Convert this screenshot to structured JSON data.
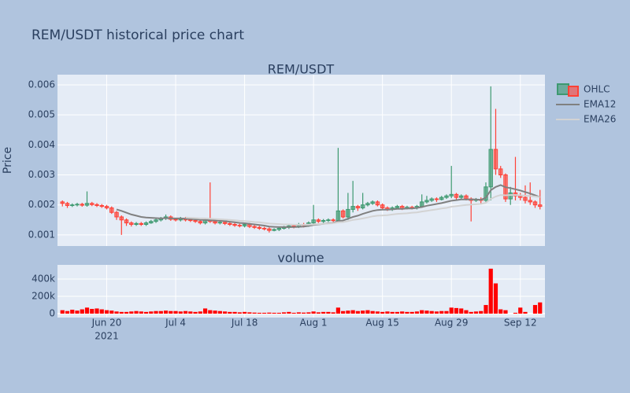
{
  "chart_data": {
    "type": "candlestick",
    "title": "REM/USDT historical price chart",
    "subtitle": "REM/USDT",
    "ylabel": "Price",
    "ohlc_name": "OHLC",
    "increasing_color": "#3D9970",
    "decreasing_color": "#FF4136",
    "x": [
      "2021-06-11",
      "2021-06-12",
      "2021-06-13",
      "2021-06-14",
      "2021-06-15",
      "2021-06-16",
      "2021-06-17",
      "2021-06-18",
      "2021-06-19",
      "2021-06-20",
      "2021-06-21",
      "2021-06-22",
      "2021-06-23",
      "2021-06-24",
      "2021-06-25",
      "2021-06-26",
      "2021-06-27",
      "2021-06-28",
      "2021-06-29",
      "2021-06-30",
      "2021-07-01",
      "2021-07-02",
      "2021-07-03",
      "2021-07-04",
      "2021-07-05",
      "2021-07-06",
      "2021-07-07",
      "2021-07-08",
      "2021-07-09",
      "2021-07-10",
      "2021-07-11",
      "2021-07-12",
      "2021-07-13",
      "2021-07-14",
      "2021-07-15",
      "2021-07-16",
      "2021-07-17",
      "2021-07-18",
      "2021-07-19",
      "2021-07-20",
      "2021-07-21",
      "2021-07-22",
      "2021-07-23",
      "2021-07-24",
      "2021-07-25",
      "2021-07-26",
      "2021-07-27",
      "2021-07-28",
      "2021-07-29",
      "2021-07-30",
      "2021-07-31",
      "2021-08-01",
      "2021-08-02",
      "2021-08-03",
      "2021-08-04",
      "2021-08-05",
      "2021-08-06",
      "2021-08-07",
      "2021-08-08",
      "2021-08-09",
      "2021-08-10",
      "2021-08-11",
      "2021-08-12",
      "2021-08-13",
      "2021-08-14",
      "2021-08-15",
      "2021-08-16",
      "2021-08-17",
      "2021-08-18",
      "2021-08-19",
      "2021-08-20",
      "2021-08-21",
      "2021-08-22",
      "2021-08-23",
      "2021-08-24",
      "2021-08-25",
      "2021-08-26",
      "2021-08-27",
      "2021-08-28",
      "2021-08-29",
      "2021-08-30",
      "2021-08-31",
      "2021-09-01",
      "2021-09-02",
      "2021-09-03",
      "2021-09-04",
      "2021-09-05",
      "2021-09-06",
      "2021-09-07",
      "2021-09-08",
      "2021-09-09",
      "2021-09-10",
      "2021-09-11",
      "2021-09-12",
      "2021-09-13",
      "2021-09-14",
      "2021-09-15",
      "2021-09-16"
    ],
    "open": [
      0.0021,
      0.00205,
      0.00198,
      0.002,
      0.00202,
      0.00199,
      0.00205,
      0.00201,
      0.00198,
      0.00195,
      0.0019,
      0.00175,
      0.0016,
      0.0015,
      0.0014,
      0.00135,
      0.00138,
      0.00135,
      0.0014,
      0.00145,
      0.0015,
      0.00155,
      0.0016,
      0.00152,
      0.0015,
      0.00155,
      0.0015,
      0.00148,
      0.00145,
      0.0014,
      0.0015,
      0.00145,
      0.0014,
      0.00142,
      0.00138,
      0.00135,
      0.00132,
      0.0013,
      0.00135,
      0.00128,
      0.00125,
      0.00122,
      0.0012,
      0.00115,
      0.00118,
      0.00122,
      0.00125,
      0.0013,
      0.00128,
      0.00135,
      0.00132,
      0.0014,
      0.0015,
      0.00145,
      0.00148,
      0.0015,
      0.00148,
      0.0018,
      0.0016,
      0.00185,
      0.00195,
      0.0019,
      0.002,
      0.00205,
      0.0021,
      0.002,
      0.0019,
      0.00185,
      0.0019,
      0.00195,
      0.00188,
      0.00192,
      0.0019,
      0.00195,
      0.0021,
      0.00215,
      0.0022,
      0.00218,
      0.00225,
      0.0023,
      0.00235,
      0.00225,
      0.0023,
      0.0022,
      0.00215,
      0.00218,
      0.00215,
      0.0026,
      0.00385,
      0.0032,
      0.003,
      0.0022,
      0.0024,
      0.0023,
      0.00225,
      0.00215,
      0.0021,
      0.002
    ],
    "high": [
      0.00215,
      0.0021,
      0.00205,
      0.00207,
      0.00207,
      0.00245,
      0.0021,
      0.00206,
      0.00203,
      0.002,
      0.00195,
      0.0018,
      0.00165,
      0.00155,
      0.00145,
      0.00143,
      0.00143,
      0.00145,
      0.0015,
      0.00155,
      0.0016,
      0.00168,
      0.00165,
      0.00157,
      0.0016,
      0.0016,
      0.00155,
      0.00153,
      0.0015,
      0.00155,
      0.00275,
      0.0015,
      0.00147,
      0.00147,
      0.00143,
      0.0014,
      0.00137,
      0.0014,
      0.0014,
      0.00133,
      0.0013,
      0.00127,
      0.00125,
      0.00122,
      0.00127,
      0.0013,
      0.00135,
      0.00135,
      0.0014,
      0.0014,
      0.00145,
      0.002,
      0.00155,
      0.00153,
      0.00155,
      0.00155,
      0.0039,
      0.00185,
      0.0024,
      0.0028,
      0.002,
      0.0024,
      0.0021,
      0.00215,
      0.00215,
      0.00205,
      0.00195,
      0.00195,
      0.002,
      0.002,
      0.00197,
      0.00197,
      0.002,
      0.00235,
      0.0023,
      0.00225,
      0.00225,
      0.0023,
      0.00235,
      0.0033,
      0.0024,
      0.00235,
      0.00235,
      0.00225,
      0.00223,
      0.00225,
      0.00275,
      0.00595,
      0.0052,
      0.0033,
      0.00305,
      0.0026,
      0.0036,
      0.0024,
      0.00265,
      0.00275,
      0.00215,
      0.0025
    ],
    "low": [
      0.00195,
      0.0019,
      0.00193,
      0.00195,
      0.00194,
      0.00194,
      0.00196,
      0.00193,
      0.0019,
      0.00185,
      0.0017,
      0.0015,
      0.001,
      0.0013,
      0.00128,
      0.0013,
      0.0013,
      0.0013,
      0.00137,
      0.0014,
      0.00145,
      0.0015,
      0.00147,
      0.00145,
      0.00145,
      0.00145,
      0.00143,
      0.0014,
      0.00135,
      0.00135,
      0.0014,
      0.00135,
      0.00135,
      0.00133,
      0.0013,
      0.00127,
      0.00125,
      0.00125,
      0.00123,
      0.0012,
      0.00117,
      0.00115,
      0.00108,
      0.00112,
      0.00113,
      0.00118,
      0.0012,
      0.00122,
      0.00123,
      0.00125,
      0.00127,
      0.00135,
      0.0014,
      0.0014,
      0.00143,
      0.00143,
      0.0014,
      0.00155,
      0.0015,
      0.00175,
      0.0018,
      0.00185,
      0.00195,
      0.002,
      0.00195,
      0.00185,
      0.0018,
      0.0018,
      0.00185,
      0.00183,
      0.00185,
      0.00185,
      0.00185,
      0.0019,
      0.00205,
      0.0021,
      0.0021,
      0.00215,
      0.0022,
      0.00222,
      0.00215,
      0.0022,
      0.00215,
      0.00145,
      0.0021,
      0.00205,
      0.0021,
      0.00215,
      0.003,
      0.0029,
      0.0021,
      0.002,
      0.00215,
      0.00215,
      0.00205,
      0.002,
      0.0019,
      0.00185
    ],
    "close": [
      0.00205,
      0.00198,
      0.002,
      0.00202,
      0.00199,
      0.00205,
      0.00201,
      0.00198,
      0.00195,
      0.0019,
      0.00175,
      0.0016,
      0.0015,
      0.0014,
      0.00135,
      0.00138,
      0.00135,
      0.0014,
      0.00145,
      0.0015,
      0.00155,
      0.0016,
      0.00152,
      0.0015,
      0.00155,
      0.0015,
      0.00148,
      0.00145,
      0.0014,
      0.0015,
      0.00145,
      0.0014,
      0.00142,
      0.00138,
      0.00135,
      0.00132,
      0.0013,
      0.00135,
      0.00128,
      0.00125,
      0.00122,
      0.0012,
      0.00115,
      0.00118,
      0.00122,
      0.00125,
      0.0013,
      0.00128,
      0.00135,
      0.00132,
      0.0014,
      0.0015,
      0.00145,
      0.00148,
      0.0015,
      0.00148,
      0.0018,
      0.0016,
      0.00185,
      0.00195,
      0.0019,
      0.002,
      0.00205,
      0.0021,
      0.002,
      0.0019,
      0.00185,
      0.0019,
      0.00195,
      0.00188,
      0.00192,
      0.0019,
      0.00195,
      0.0021,
      0.00215,
      0.0022,
      0.00218,
      0.00225,
      0.0023,
      0.00235,
      0.00225,
      0.0023,
      0.0022,
      0.00215,
      0.00218,
      0.00215,
      0.0026,
      0.00385,
      0.0032,
      0.003,
      0.0022,
      0.0024,
      0.0023,
      0.00225,
      0.00215,
      0.0021,
      0.002,
      0.00195
    ],
    "series": [
      {
        "name": "EMA12",
        "color": "#808080",
        "values": [
          null,
          null,
          null,
          null,
          null,
          null,
          null,
          null,
          null,
          null,
          null,
          0.00185,
          0.0018,
          0.00174,
          0.00168,
          0.00164,
          0.0016,
          0.00158,
          0.00157,
          0.00156,
          0.00155,
          0.00156,
          0.00155,
          0.00155,
          0.00155,
          0.00154,
          0.00153,
          0.00152,
          0.0015,
          0.0015,
          0.00149,
          0.00148,
          0.00147,
          0.00146,
          0.00144,
          0.00142,
          0.0014,
          0.00139,
          0.00137,
          0.00135,
          0.00133,
          0.00131,
          0.00128,
          0.00127,
          0.00126,
          0.00126,
          0.00126,
          0.00126,
          0.00127,
          0.00128,
          0.0013,
          0.00133,
          0.00135,
          0.00137,
          0.00139,
          0.0014,
          0.00146,
          0.00148,
          0.00154,
          0.0016,
          0.00164,
          0.0017,
          0.00175,
          0.0018,
          0.00183,
          0.00184,
          0.00184,
          0.00185,
          0.00187,
          0.00187,
          0.00188,
          0.00188,
          0.0019,
          0.00193,
          0.00197,
          0.002,
          0.00203,
          0.00206,
          0.0021,
          0.00214,
          0.00216,
          0.00218,
          0.00218,
          0.00218,
          0.00218,
          0.00217,
          0.00224,
          0.00249,
          0.0026,
          0.00266,
          0.00259,
          0.00256,
          0.00252,
          0.00248,
          0.00243,
          0.00238,
          0.00232,
          0.00226
        ]
      },
      {
        "name": "EMA26",
        "color": "#d3d3d3",
        "values": [
          null,
          null,
          null,
          null,
          null,
          null,
          null,
          null,
          null,
          null,
          null,
          null,
          null,
          null,
          null,
          null,
          null,
          null,
          null,
          null,
          null,
          null,
          null,
          null,
          null,
          0.00158,
          0.00157,
          0.00156,
          0.00155,
          0.00155,
          0.00154,
          0.00153,
          0.00152,
          0.00151,
          0.0015,
          0.00149,
          0.00147,
          0.00146,
          0.00145,
          0.00143,
          0.00142,
          0.0014,
          0.00138,
          0.00137,
          0.00136,
          0.00135,
          0.00135,
          0.00134,
          0.00134,
          0.00134,
          0.00134,
          0.00135,
          0.00136,
          0.00137,
          0.00138,
          0.00139,
          0.00142,
          0.00143,
          0.00146,
          0.0015,
          0.00152,
          0.00155,
          0.00158,
          0.00162,
          0.00164,
          0.00165,
          0.00166,
          0.00168,
          0.0017,
          0.00171,
          0.00172,
          0.00174,
          0.00175,
          0.00178,
          0.0018,
          0.00183,
          0.00185,
          0.00188,
          0.0019,
          0.00194,
          0.00196,
          0.00198,
          0.002,
          0.00201,
          0.00202,
          0.00203,
          0.00207,
          0.0022,
          0.00228,
          0.00233,
          0.00232,
          0.00233,
          0.00233,
          0.00232,
          0.00231,
          0.0023,
          0.00228,
          0.00226
        ]
      }
    ],
    "xlim": [
      "2021-06-10",
      "2021-09-17"
    ],
    "xticks": [
      {
        "value": "2021-06-20",
        "label": "Jun 20"
      },
      {
        "value": "2021-07-04",
        "label": "Jul 4"
      },
      {
        "value": "2021-07-18",
        "label": "Jul 18"
      },
      {
        "value": "2021-08-01",
        "label": "Aug 1"
      },
      {
        "value": "2021-08-15",
        "label": "Aug 15"
      },
      {
        "value": "2021-08-29",
        "label": "Aug 29"
      },
      {
        "value": "2021-09-12",
        "label": "Sep 12"
      }
    ],
    "x_year_label": "2021",
    "ylim": [
      0.00063,
      0.00634
    ],
    "yticks": [
      0.001,
      0.002,
      0.003,
      0.004,
      0.005,
      0.006
    ],
    "grid": true,
    "volume": {
      "title": "volume",
      "color": "#ff0000",
      "values": [
        40000,
        30000,
        45000,
        35000,
        50000,
        70000,
        55000,
        60000,
        50000,
        40000,
        35000,
        25000,
        20000,
        20000,
        25000,
        30000,
        25000,
        20000,
        25000,
        30000,
        30000,
        35000,
        30000,
        30000,
        25000,
        30000,
        25000,
        20000,
        25000,
        60000,
        40000,
        35000,
        30000,
        25000,
        20000,
        20000,
        15000,
        20000,
        15000,
        12000,
        10000,
        10000,
        12000,
        10000,
        10000,
        15000,
        20000,
        10000,
        15000,
        12000,
        15000,
        25000,
        15000,
        20000,
        20000,
        15000,
        70000,
        30000,
        35000,
        40000,
        30000,
        35000,
        40000,
        30000,
        25000,
        20000,
        25000,
        20000,
        20000,
        25000,
        20000,
        20000,
        25000,
        40000,
        35000,
        30000,
        25000,
        30000,
        30000,
        70000,
        65000,
        60000,
        40000,
        20000,
        25000,
        30000,
        100000,
        520000,
        350000,
        50000,
        40000,
        0,
        10000,
        70000,
        20000,
        0,
        100000,
        130000
      ],
      "ylim": [
        -45000,
        564000
      ],
      "yticks": [
        0,
        {
          "value": 200000,
          "label": "200k"
        },
        {
          "value": 400000,
          "label": "400k"
        }
      ]
    }
  }
}
